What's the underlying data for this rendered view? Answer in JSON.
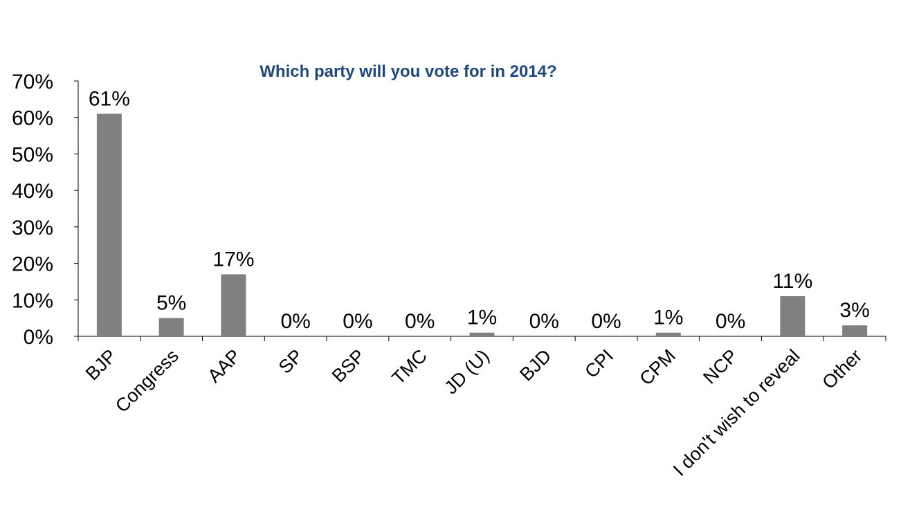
{
  "chart_data": {
    "type": "bar",
    "title": "Which party will you vote for in 2014?",
    "categories": [
      "BJP",
      "Congress",
      "AAP",
      "SP",
      "BSP",
      "TMC",
      "JD (U)",
      "BJD",
      "CPI",
      "CPM",
      "NCP",
      "I don't wish to reveal",
      "Other"
    ],
    "values": [
      61,
      5,
      17,
      0,
      0,
      0,
      1,
      0,
      0,
      1,
      0,
      11,
      3
    ],
    "value_labels": [
      "61%",
      "5%",
      "17%",
      "0%",
      "0%",
      "0%",
      "1%",
      "0%",
      "0%",
      "1%",
      "0%",
      "11%",
      "3%"
    ],
    "yticks": [
      "0%",
      "10%",
      "20%",
      "30%",
      "40%",
      "50%",
      "60%",
      "70%"
    ],
    "ylim": [
      0,
      70
    ],
    "xlabel": "",
    "ylabel": "",
    "grid": false,
    "legend": "none",
    "bar_color": "#808080"
  }
}
